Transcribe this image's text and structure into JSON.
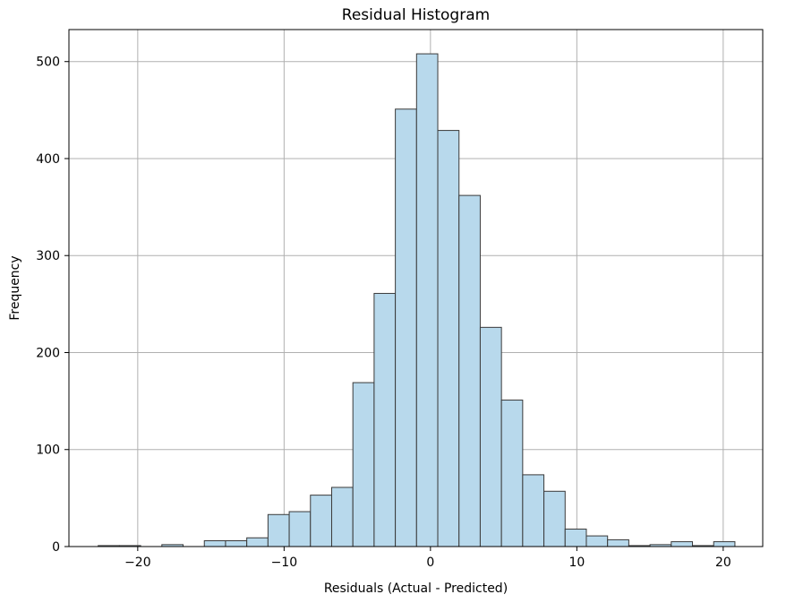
{
  "chart_data": {
    "type": "bar",
    "title": "Residual Histogram",
    "xlabel": "Residuals (Actual - Predicted)",
    "ylabel": "Frequency",
    "xlim": [
      -24.7,
      22.7
    ],
    "ylim": [
      0,
      533
    ],
    "grid": true,
    "bar_color": "#b8d9ec",
    "edge_color": "#3a3a3a",
    "grid_color": "#b0b0b0",
    "x_ticks": [
      {
        "value": -20,
        "label": "−20"
      },
      {
        "value": -10,
        "label": "−10"
      },
      {
        "value": 0,
        "label": "0"
      },
      {
        "value": 10,
        "label": "10"
      },
      {
        "value": 20,
        "label": "20"
      }
    ],
    "y_ticks": [
      {
        "value": 0,
        "label": "0"
      },
      {
        "value": 100,
        "label": "100"
      },
      {
        "value": 200,
        "label": "200"
      },
      {
        "value": 300,
        "label": "300"
      },
      {
        "value": 400,
        "label": "400"
      },
      {
        "value": 500,
        "label": "500"
      }
    ],
    "bins": [
      {
        "x0": -22.7,
        "x1": -21.25,
        "count": 1
      },
      {
        "x0": -21.25,
        "x1": -19.8,
        "count": 1
      },
      {
        "x0": -19.8,
        "x1": -18.35,
        "count": 0
      },
      {
        "x0": -18.35,
        "x1": -16.9,
        "count": 2
      },
      {
        "x0": -16.9,
        "x1": -15.45,
        "count": 0
      },
      {
        "x0": -15.45,
        "x1": -14.0,
        "count": 6
      },
      {
        "x0": -14.0,
        "x1": -12.55,
        "count": 6
      },
      {
        "x0": -12.55,
        "x1": -11.1,
        "count": 9
      },
      {
        "x0": -11.1,
        "x1": -9.65,
        "count": 33
      },
      {
        "x0": -9.65,
        "x1": -8.2,
        "count": 36
      },
      {
        "x0": -8.2,
        "x1": -6.75,
        "count": 53
      },
      {
        "x0": -6.75,
        "x1": -5.3,
        "count": 61
      },
      {
        "x0": -5.3,
        "x1": -3.85,
        "count": 169
      },
      {
        "x0": -3.85,
        "x1": -2.4,
        "count": 261
      },
      {
        "x0": -2.4,
        "x1": -0.95,
        "count": 451
      },
      {
        "x0": -0.95,
        "x1": 0.5,
        "count": 508
      },
      {
        "x0": 0.5,
        "x1": 1.95,
        "count": 429
      },
      {
        "x0": 1.95,
        "x1": 3.4,
        "count": 362
      },
      {
        "x0": 3.4,
        "x1": 4.85,
        "count": 226
      },
      {
        "x0": 4.85,
        "x1": 6.3,
        "count": 151
      },
      {
        "x0": 6.3,
        "x1": 7.75,
        "count": 74
      },
      {
        "x0": 7.75,
        "x1": 9.2,
        "count": 57
      },
      {
        "x0": 9.2,
        "x1": 10.65,
        "count": 18
      },
      {
        "x0": 10.65,
        "x1": 12.1,
        "count": 11
      },
      {
        "x0": 12.1,
        "x1": 13.55,
        "count": 7
      },
      {
        "x0": 13.55,
        "x1": 15.0,
        "count": 1
      },
      {
        "x0": 15.0,
        "x1": 16.45,
        "count": 2
      },
      {
        "x0": 16.45,
        "x1": 17.9,
        "count": 5
      },
      {
        "x0": 17.9,
        "x1": 19.35,
        "count": 1
      },
      {
        "x0": 19.35,
        "x1": 20.8,
        "count": 5
      }
    ]
  }
}
